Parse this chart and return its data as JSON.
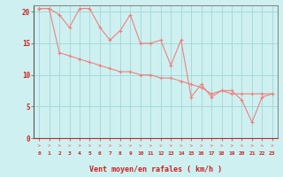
{
  "xlabel": "Vent moyen/en rafales ( km/h )",
  "background_color": "#cef0f0",
  "grid_color": "#a0d8d8",
  "line_color": "#f08080",
  "xlim": [
    -0.5,
    23.5
  ],
  "ylim": [
    0,
    21
  ],
  "yticks": [
    0,
    5,
    10,
    15,
    20
  ],
  "xticks": [
    0,
    1,
    2,
    3,
    4,
    5,
    6,
    7,
    8,
    9,
    10,
    11,
    12,
    13,
    14,
    15,
    16,
    17,
    18,
    19,
    20,
    21,
    22,
    23
  ],
  "x_rafales": [
    0,
    1,
    2,
    3,
    4,
    5,
    6,
    7,
    8,
    9,
    10,
    11,
    12,
    13,
    14,
    15,
    16,
    17,
    18,
    19,
    20,
    21,
    22,
    23
  ],
  "y_rafales": [
    20.5,
    20.5,
    19.5,
    17.5,
    20.5,
    20.5,
    17.5,
    15.5,
    17.0,
    19.5,
    15.0,
    15.0,
    15.5,
    11.5,
    15.5,
    6.5,
    8.5,
    6.5,
    7.5,
    7.5,
    6.0,
    2.5,
    6.5,
    7.0
  ],
  "x_moyen": [
    0,
    1,
    2,
    3,
    4,
    5,
    6,
    7,
    8,
    9,
    10,
    11,
    12,
    13,
    14,
    15,
    16,
    17,
    18,
    19,
    20,
    21,
    22,
    23
  ],
  "y_moyen": [
    20.5,
    20.5,
    13.5,
    13.0,
    12.5,
    12.0,
    11.5,
    11.0,
    10.5,
    10.5,
    10.0,
    10.0,
    9.5,
    9.5,
    9.0,
    8.5,
    8.0,
    7.0,
    7.5,
    7.0,
    7.0,
    7.0,
    7.0,
    7.0
  ],
  "arrow_dirs": [
    0,
    0,
    0,
    0,
    0,
    0,
    -30,
    0,
    0,
    -30,
    -30,
    -30,
    -30,
    -30,
    0,
    0,
    0,
    0,
    0,
    0,
    45,
    0,
    45,
    -30
  ],
  "arrow_color": "#f08080",
  "spine_color": "#888888"
}
